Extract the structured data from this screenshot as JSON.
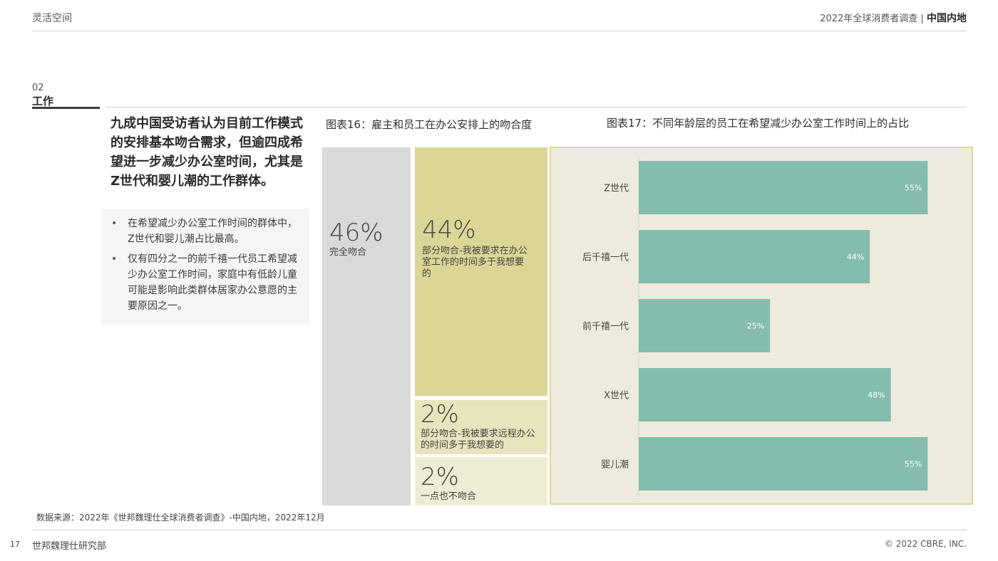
{
  "header": {
    "left_label": "灵活空间",
    "right_report": "2022年全球消费者调查 |",
    "right_region": "中国内地"
  },
  "section": {
    "number": "02",
    "name": "工作"
  },
  "headline": "九成中国受访者认为目前工作模式的安排基本吻合需求，但逾四成希望进一步减少办公室时间，尤其是Z世代和婴儿潮的工作群体。",
  "bullets": [
    "在希望减少办公室工作时间的群体中，Z世代和婴儿潮占比最高。",
    "仅有四分之一的前千禧一代员工希望减少办公室工作时间，家庭中有低龄儿童可能是影响此类群体居家办公意愿的主要原因之一。"
  ],
  "chart_data": [
    {
      "type": "treemap",
      "title": "图表16：雇主和员工在办公安排上的吻合度",
      "items": [
        {
          "value": 46,
          "value_label": "46%",
          "label": "完全吻合"
        },
        {
          "value": 44,
          "value_label": "44%",
          "label": "部分吻合-我被要求在办公室工作的时间多于我想要的"
        },
        {
          "value": 2,
          "value_label": "2%",
          "label": "部分吻合-我被要求远程办公的时间多于我想要的"
        },
        {
          "value": 2,
          "value_label": "2%",
          "label": "一点也不吻合"
        }
      ],
      "colors": [
        "#d9dad8",
        "#dcd696",
        "#e8e4bc",
        "#eeecd4"
      ]
    },
    {
      "type": "bar",
      "orientation": "horizontal",
      "title": "图表17：不同年龄层的员工在希望减少办公室工作时间上的占比",
      "categories": [
        "Z世代",
        "后千禧一代",
        "前千禧一代",
        "X世代",
        "婴儿潮"
      ],
      "values": [
        55,
        44,
        25,
        48,
        55
      ],
      "value_labels": [
        "55%",
        "44%",
        "25%",
        "48%",
        "55%"
      ],
      "xlim": [
        0,
        100
      ],
      "bar_color": "#84bcae",
      "background_color": "#eeebde",
      "border_color": "#dcd696"
    }
  ],
  "source_note": "数据来源：2022年《世邦魏理仕全球消费者调查》-中国内地，2022年12月",
  "footer": {
    "page_number": "17",
    "org": "世邦魏理仕研究部",
    "copyright": "© 2022 CBRE, INC."
  }
}
